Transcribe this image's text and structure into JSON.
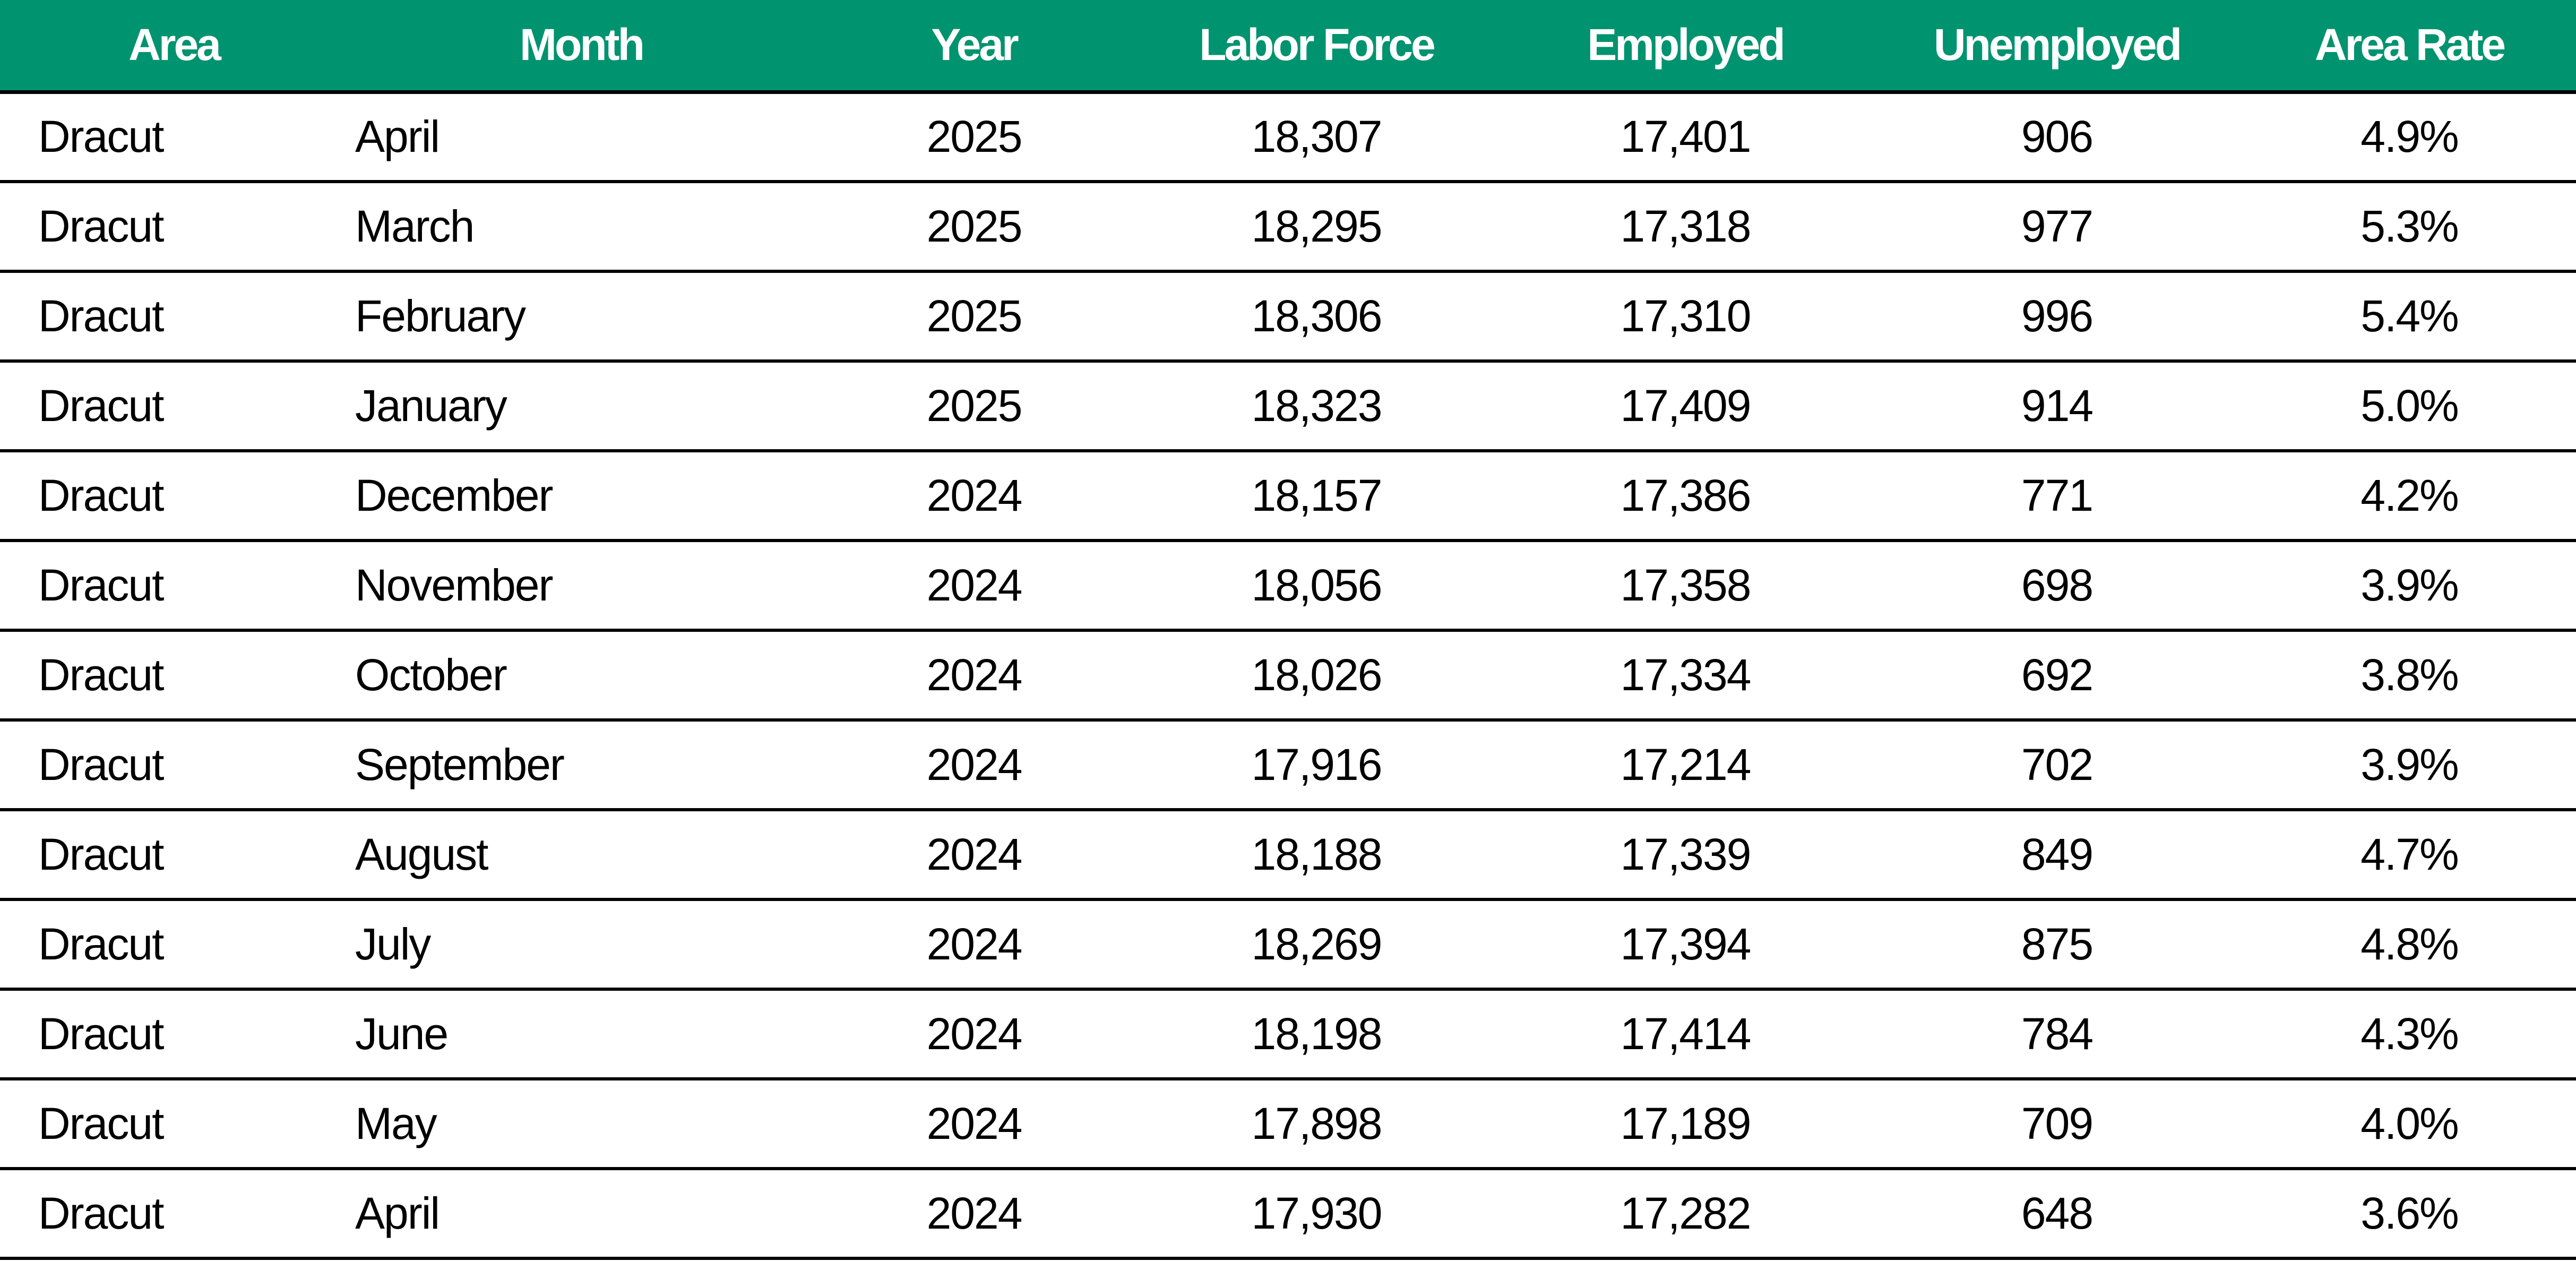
{
  "table": {
    "headers": [
      "Area",
      "Month",
      "Year",
      "Labor Force",
      "Employed",
      "Unemployed",
      "Area Rate"
    ],
    "header_bg": "#00936f",
    "rows": [
      [
        "Dracut",
        "April",
        "2025",
        "18,307",
        "17,401",
        "906",
        "4.9%"
      ],
      [
        "Dracut",
        "March",
        "2025",
        "18,295",
        "17,318",
        "977",
        "5.3%"
      ],
      [
        "Dracut",
        "February",
        "2025",
        "18,306",
        "17,310",
        "996",
        "5.4%"
      ],
      [
        "Dracut",
        "January",
        "2025",
        "18,323",
        "17,409",
        "914",
        "5.0%"
      ],
      [
        "Dracut",
        "December",
        "2024",
        "18,157",
        "17,386",
        "771",
        "4.2%"
      ],
      [
        "Dracut",
        "November",
        "2024",
        "18,056",
        "17,358",
        "698",
        "3.9%"
      ],
      [
        "Dracut",
        "October",
        "2024",
        "18,026",
        "17,334",
        "692",
        "3.8%"
      ],
      [
        "Dracut",
        "September",
        "2024",
        "17,916",
        "17,214",
        "702",
        "3.9%"
      ],
      [
        "Dracut",
        "August",
        "2024",
        "18,188",
        "17,339",
        "849",
        "4.7%"
      ],
      [
        "Dracut",
        "July",
        "2024",
        "18,269",
        "17,394",
        "875",
        "4.8%"
      ],
      [
        "Dracut",
        "June",
        "2024",
        "18,198",
        "17,414",
        "784",
        "4.3%"
      ],
      [
        "Dracut",
        "May",
        "2024",
        "17,898",
        "17,189",
        "709",
        "4.0%"
      ],
      [
        "Dracut",
        "April",
        "2024",
        "17,930",
        "17,282",
        "648",
        "3.6%"
      ]
    ]
  }
}
